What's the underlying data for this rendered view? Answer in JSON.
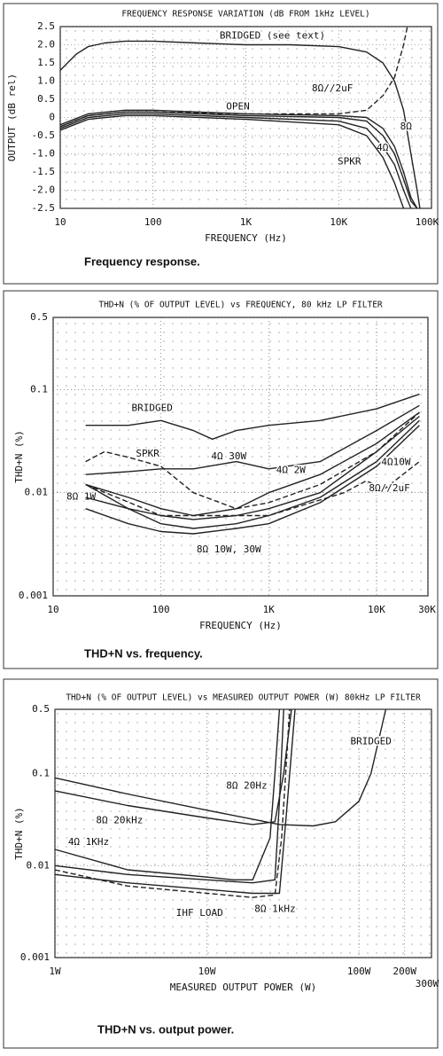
{
  "chart_data": [
    {
      "type": "line",
      "title": "FREQUENCY RESPONSE VARIATION (dB FROM 1kHz LEVEL)",
      "xlabel": "FREQUENCY (Hz)",
      "ylabel": "OUTPUT (dB rel)",
      "caption": "Frequency response.",
      "log_x": true,
      "log_y": false,
      "grid": true,
      "xlim": [
        10,
        100000
      ],
      "xticks": [
        10,
        100,
        {
          "value": 1000,
          "label": "1K"
        },
        {
          "value": 10000,
          "label": "10K"
        },
        {
          "value": 100000,
          "label": "100K"
        }
      ],
      "ylim": [
        -2.5,
        2.5
      ],
      "yticks": [
        2.5,
        {
          "value": 2,
          "label": "2.0"
        },
        1.5,
        {
          "value": 1,
          "label": "1.0"
        },
        0.5,
        0,
        -0.5,
        {
          "value": -1,
          "label": "-1.0"
        },
        -1.5,
        {
          "value": -2,
          "label": "-2.0"
        },
        -2.5
      ],
      "series": [
        {
          "name": "BRIDGED (see text)",
          "color": "#222222",
          "dashed": false,
          "x": [
            10,
            15,
            20,
            30,
            50,
            100,
            300,
            1000,
            3000,
            10000,
            20000,
            30000,
            40000,
            50000,
            60000,
            70000,
            75000
          ],
          "values": [
            1.3,
            1.75,
            1.95,
            2.05,
            2.1,
            2.1,
            2.05,
            2.0,
            2.0,
            1.95,
            1.8,
            1.5,
            1.0,
            0.2,
            -1.0,
            -2.0,
            -2.5
          ]
        },
        {
          "name": "8Ω//2uF",
          "color": "#222222",
          "dashed": true,
          "x": [
            10,
            20,
            50,
            100,
            1000,
            10000,
            20000,
            30000,
            40000,
            50000,
            55000
          ],
          "values": [
            -0.25,
            0.05,
            0.15,
            0.15,
            0.1,
            0.1,
            0.2,
            0.6,
            1.1,
            2.0,
            2.5
          ]
        },
        {
          "name": "OPEN",
          "color": "#222222",
          "dashed": false,
          "x": [
            10,
            20,
            50,
            100,
            1000,
            10000,
            20000,
            30000,
            40000,
            50000,
            60000,
            70000
          ],
          "values": [
            -0.2,
            0.1,
            0.2,
            0.2,
            0.1,
            0.05,
            0,
            -0.3,
            -0.8,
            -1.5,
            -2.2,
            -2.5
          ]
        },
        {
          "name": "8Ω",
          "color": "#222222",
          "dashed": false,
          "x": [
            10,
            20,
            50,
            100,
            1000,
            10000,
            20000,
            30000,
            40000,
            50000,
            60000,
            70000
          ],
          "values": [
            -0.25,
            0.05,
            0.15,
            0.15,
            0.05,
            0,
            -0.1,
            -0.5,
            -1.0,
            -1.7,
            -2.3,
            -2.5
          ]
        },
        {
          "name": "4Ω",
          "color": "#222222",
          "dashed": false,
          "x": [
            10,
            20,
            50,
            100,
            1000,
            10000,
            20000,
            30000,
            40000,
            50000,
            60000
          ],
          "values": [
            -0.3,
            0,
            0.1,
            0.1,
            0,
            -0.1,
            -0.3,
            -0.8,
            -1.3,
            -2.0,
            -2.5
          ]
        },
        {
          "name": "SPKR",
          "color": "#222222",
          "dashed": false,
          "x": [
            10,
            20,
            50,
            100,
            1000,
            10000,
            20000,
            30000,
            40000,
            50000
          ],
          "values": [
            -0.35,
            -0.05,
            0.05,
            0.05,
            -0.05,
            -0.2,
            -0.5,
            -1.1,
            -1.8,
            -2.5
          ]
        }
      ]
    },
    {
      "type": "line",
      "title": "THD+N (% OF OUTPUT LEVEL) vs FREQUENCY, 80 kHz LP FILTER",
      "xlabel": "FREQUENCY (Hz)",
      "ylabel": "THD+N (%)",
      "caption": "THD+N vs. frequency.",
      "log_x": true,
      "log_y": true,
      "grid": true,
      "xlim": [
        10,
        30000
      ],
      "xticks": [
        10,
        100,
        {
          "value": 1000,
          "label": "1K"
        },
        {
          "value": 10000,
          "label": "10K"
        },
        {
          "value": 30000,
          "label": "30K"
        }
      ],
      "ylim": [
        0.001,
        0.5
      ],
      "yticks": [
        0.5,
        0.1,
        0.01,
        0.001
      ],
      "series": [
        {
          "name": "BRIDGED",
          "color": "#222222",
          "dashed": false,
          "x": [
            20,
            50,
            100,
            200,
            300,
            500,
            1000,
            3000,
            10000,
            25000
          ],
          "values": [
            0.045,
            0.045,
            0.05,
            0.04,
            0.033,
            0.04,
            0.045,
            0.05,
            0.065,
            0.09
          ]
        },
        {
          "name": "SPKR",
          "color": "#222222",
          "dashed": true,
          "x": [
            20,
            30,
            50,
            100,
            200,
            500,
            1000,
            3000,
            10000,
            25000
          ],
          "values": [
            0.02,
            0.025,
            0.022,
            0.018,
            0.01,
            0.007,
            0.008,
            0.012,
            0.025,
            0.06
          ]
        },
        {
          "name": "4Ω 30W",
          "color": "#222222",
          "dashed": false,
          "x": [
            20,
            50,
            100,
            200,
            500,
            1000,
            3000,
            10000,
            25000
          ],
          "values": [
            0.015,
            0.016,
            0.017,
            0.017,
            0.02,
            0.017,
            0.02,
            0.04,
            0.07
          ]
        },
        {
          "name": "4Ω 2W",
          "color": "#222222",
          "dashed": false,
          "x": [
            20,
            50,
            100,
            200,
            500,
            1000,
            3000,
            10000,
            25000
          ],
          "values": [
            0.012,
            0.009,
            0.007,
            0.006,
            0.007,
            0.01,
            0.015,
            0.03,
            0.06
          ]
        },
        {
          "name": "8Ω 1W",
          "color": "#222222",
          "dashed": false,
          "x": [
            20,
            50,
            100,
            200,
            500,
            1000,
            3000,
            10000,
            25000
          ],
          "values": [
            0.012,
            0.007,
            0.005,
            0.0045,
            0.005,
            0.006,
            0.009,
            0.02,
            0.05
          ]
        },
        {
          "name": "8Ω 10W, 30W",
          "color": "#222222",
          "dashed": false,
          "x": [
            20,
            50,
            100,
            200,
            500,
            1000,
            3000,
            10000,
            25000
          ],
          "values": [
            0.007,
            0.005,
            0.0042,
            0.004,
            0.0045,
            0.005,
            0.008,
            0.018,
            0.045
          ]
        },
        {
          "name": "4Ω10W",
          "color": "#222222",
          "dashed": false,
          "x": [
            20,
            50,
            100,
            200,
            500,
            1000,
            3000,
            10000,
            25000
          ],
          "values": [
            0.009,
            0.007,
            0.006,
            0.0055,
            0.006,
            0.007,
            0.01,
            0.025,
            0.055
          ]
        },
        {
          "name": "8Ω//2uF",
          "color": "#222222",
          "dashed": true,
          "x": [
            20,
            100,
            1000,
            5000,
            8000,
            12000,
            25000
          ],
          "values": [
            0.012,
            0.006,
            0.006,
            0.01,
            0.013,
            0.011,
            0.02
          ]
        }
      ]
    },
    {
      "type": "line",
      "title": "THD+N (% OF OUTPUT LEVEL) vs MEASURED OUTPUT POWER (W) 80kHz LP FILTER",
      "xlabel": "MEASURED OUTPUT POWER (W)",
      "ylabel": "THD+N (%)",
      "caption": "THD+N vs. output power.",
      "log_x": true,
      "log_y": true,
      "grid": true,
      "xlim": [
        1,
        300
      ],
      "xticks": [
        {
          "value": 1,
          "label": "1W"
        },
        {
          "value": 10,
          "label": "10W"
        },
        {
          "value": 100,
          "label": "100W"
        },
        {
          "value": 200,
          "label": "200W"
        },
        {
          "value": 300,
          "label": "300W"
        }
      ],
      "ylim": [
        0.001,
        0.5
      ],
      "yticks": [
        0.5,
        0.1,
        0.01,
        0.001
      ],
      "series": [
        {
          "name": "BRIDGED",
          "color": "#222222",
          "dashed": false,
          "x": [
            1,
            3,
            10,
            20,
            30,
            50,
            70,
            100,
            120,
            150
          ],
          "values": [
            0.09,
            0.06,
            0.04,
            0.032,
            0.028,
            0.027,
            0.03,
            0.05,
            0.1,
            0.5
          ]
        },
        {
          "name": "8Ω 20Hz",
          "color": "#222222",
          "dashed": false,
          "x": [
            1,
            3,
            10,
            20,
            28,
            30,
            32
          ],
          "values": [
            0.01,
            0.008,
            0.007,
            0.0065,
            0.007,
            0.05,
            0.5
          ]
        },
        {
          "name": "8Ω 20kHz",
          "color": "#222222",
          "dashed": false,
          "x": [
            1,
            3,
            10,
            20,
            28,
            32,
            36
          ],
          "values": [
            0.065,
            0.045,
            0.033,
            0.028,
            0.03,
            0.1,
            0.5
          ]
        },
        {
          "name": "4Ω 1KHz",
          "color": "#222222",
          "dashed": false,
          "x": [
            1,
            3,
            10,
            15,
            20,
            26,
            28,
            30
          ],
          "values": [
            0.015,
            0.009,
            0.0075,
            0.007,
            0.007,
            0.02,
            0.1,
            0.5
          ]
        },
        {
          "name": "8Ω 1kHz",
          "color": "#222222",
          "dashed": false,
          "x": [
            1,
            3,
            10,
            20,
            30,
            33,
            38
          ],
          "values": [
            0.008,
            0.0065,
            0.0055,
            0.005,
            0.005,
            0.03,
            0.5
          ]
        },
        {
          "name": "IHF LOAD",
          "color": "#222222",
          "dashed": true,
          "x": [
            1,
            3,
            10,
            20,
            28,
            31,
            35
          ],
          "values": [
            0.009,
            0.006,
            0.005,
            0.0045,
            0.0048,
            0.02,
            0.5
          ]
        }
      ]
    }
  ]
}
